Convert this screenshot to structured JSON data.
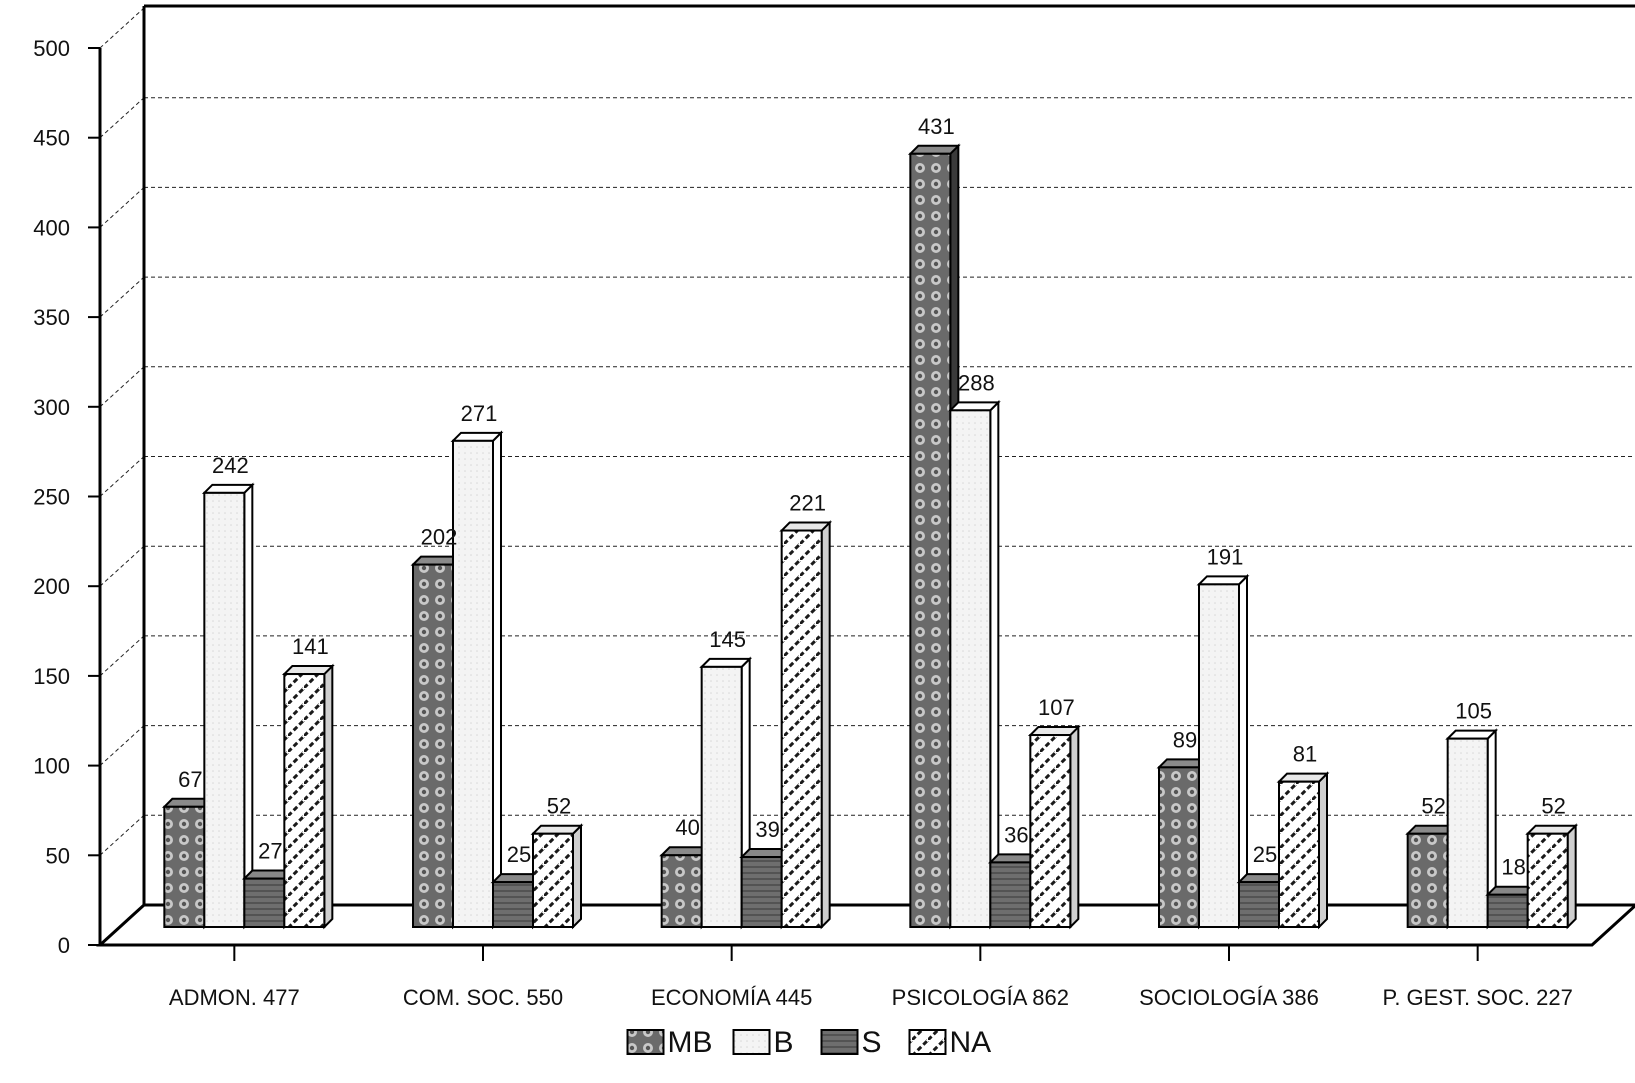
{
  "chart_data": {
    "type": "bar",
    "title": "",
    "xlabel": "",
    "ylabel": "",
    "ylim": [
      0,
      500
    ],
    "yticks": [
      0,
      50,
      100,
      150,
      200,
      250,
      300,
      350,
      400,
      450,
      500
    ],
    "grid": true,
    "legend_position": "bottom",
    "categories": [
      "ADMON. 477",
      "COM. SOC. 550",
      "ECONOMÍA 445",
      "PSICOLOGÍA 862",
      "SOCIOLOGÍA 386",
      "P. GEST. SOC. 227"
    ],
    "series": [
      {
        "name": "MB",
        "pattern": "dotted-dark",
        "values": [
          67,
          202,
          40,
          431,
          89,
          52
        ]
      },
      {
        "name": "B",
        "pattern": "light",
        "values": [
          242,
          271,
          145,
          288,
          191,
          105
        ]
      },
      {
        "name": "S",
        "pattern": "dark-solid",
        "values": [
          27,
          25,
          39,
          36,
          25,
          18
        ]
      },
      {
        "name": "NA",
        "pattern": "hatched",
        "values": [
          141,
          52,
          221,
          107,
          81,
          52
        ]
      }
    ]
  }
}
